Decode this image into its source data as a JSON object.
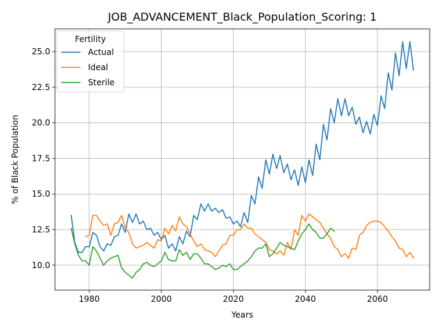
{
  "chart_data": {
    "type": "line",
    "title": "JOB_ADVANCEMENT_Black_Population_Scoring: 1",
    "xlabel": "Years",
    "ylabel": "% of Black Population",
    "xlim": [
      1970.5,
      2074.5
    ],
    "ylim": [
      8.25,
      26.6
    ],
    "xticks": [
      1980,
      2000,
      2020,
      2040,
      2060
    ],
    "yticks": [
      10.0,
      12.5,
      15.0,
      17.5,
      20.0,
      22.5,
      25.0
    ],
    "xtick_labels": [
      "1980",
      "2000",
      "2020",
      "2040",
      "2060"
    ],
    "ytick_labels": [
      "10.0",
      "12.5",
      "15.0",
      "17.5",
      "20.0",
      "22.5",
      "25.0"
    ],
    "grid": true,
    "legend": {
      "title": "Fertility",
      "placement": "top-left"
    },
    "series": [
      {
        "name": "Actual",
        "color": "#1f77b4",
        "x": [
          1975,
          1976,
          1977,
          1978,
          1979,
          1980,
          1981,
          1982,
          1983,
          1984,
          1985,
          1986,
          1987,
          1988,
          1989,
          1990,
          1991,
          1992,
          1993,
          1994,
          1995,
          1996,
          1997,
          1998,
          1999,
          2000,
          2001,
          2002,
          2003,
          2004,
          2005,
          2006,
          2007,
          2008,
          2009,
          2010,
          2011,
          2012,
          2013,
          2014,
          2015,
          2016,
          2017,
          2018,
          2019,
          2020,
          2021,
          2022,
          2023,
          2024,
          2025,
          2026,
          2027,
          2028,
          2029,
          2030,
          2031,
          2032,
          2033,
          2034,
          2035,
          2036,
          2037,
          2038,
          2039,
          2040,
          2041,
          2042,
          2043,
          2044,
          2045,
          2046,
          2047,
          2048,
          2049,
          2050,
          2051,
          2052,
          2053,
          2054,
          2055,
          2056,
          2057,
          2058,
          2059,
          2060,
          2061,
          2062,
          2063,
          2064,
          2065,
          2066,
          2067,
          2068,
          2069,
          2070
        ],
        "y": [
          13.5,
          11.6,
          10.9,
          10.9,
          11.3,
          11.3,
          12.3,
          12.1,
          11.3,
          11.0,
          11.5,
          11.4,
          12.0,
          12.1,
          12.9,
          12.3,
          13.6,
          13.0,
          13.6,
          12.9,
          13.1,
          12.5,
          12.6,
          12.1,
          12.3,
          11.8,
          12.1,
          11.2,
          11.5,
          11.0,
          12.0,
          11.5,
          12.4,
          12.0,
          13.5,
          13.2,
          14.3,
          13.8,
          14.3,
          13.8,
          14.0,
          13.7,
          13.9,
          13.3,
          13.4,
          12.9,
          13.1,
          12.7,
          13.7,
          13.0,
          14.9,
          14.3,
          16.2,
          15.4,
          17.4,
          16.4,
          17.8,
          16.8,
          17.7,
          16.5,
          17.1,
          16.0,
          16.7,
          15.6,
          16.9,
          15.8,
          17.4,
          16.3,
          18.5,
          17.4,
          19.9,
          18.8,
          21.0,
          20.0,
          21.7,
          20.5,
          21.7,
          20.5,
          21.1,
          19.9,
          20.4,
          19.3,
          20.1,
          19.2,
          20.6,
          19.8,
          21.9,
          21.0,
          23.5,
          22.3,
          24.9,
          23.3,
          25.7,
          23.8,
          25.7,
          23.7
        ]
      },
      {
        "name": "Ideal",
        "color": "#ff7f0e",
        "x": [
          1979,
          1980,
          1981,
          1982,
          1983,
          1984,
          1985,
          1986,
          1987,
          1988,
          1989,
          1990,
          1991,
          1992,
          1993,
          1994,
          1995,
          1996,
          1997,
          1998,
          1999,
          2000,
          2001,
          2002,
          2003,
          2004,
          2005,
          2006,
          2007,
          2008,
          2009,
          2010,
          2011,
          2012,
          2013,
          2014,
          2015,
          2016,
          2017,
          2018,
          2019,
          2020,
          2021,
          2022,
          2023,
          2024,
          2025,
          2026,
          2027,
          2028,
          2029,
          2030,
          2031,
          2032,
          2033,
          2034,
          2035,
          2036,
          2037,
          2038,
          2039,
          2040,
          2041,
          2042,
          2043,
          2044,
          2045,
          2046,
          2047,
          2048,
          2049,
          2050,
          2051,
          2052,
          2053,
          2054,
          2055,
          2056,
          2057,
          2058,
          2059,
          2060,
          2061,
          2062,
          2063,
          2064,
          2065,
          2066,
          2067,
          2068,
          2069,
          2070
        ],
        "y": [
          12.0,
          12.1,
          13.5,
          13.5,
          13.1,
          12.8,
          12.9,
          12.1,
          12.9,
          13.0,
          13.5,
          12.6,
          12.3,
          11.5,
          11.2,
          11.3,
          11.4,
          11.6,
          11.4,
          11.2,
          11.8,
          11.7,
          12.6,
          12.2,
          12.8,
          12.4,
          13.4,
          12.9,
          12.7,
          12.2,
          11.7,
          11.3,
          11.5,
          11.1,
          11.0,
          10.9,
          10.6,
          11.0,
          11.4,
          11.5,
          12.1,
          12.1,
          12.5,
          12.5,
          12.9,
          12.6,
          12.6,
          12.2,
          12.0,
          11.8,
          11.6,
          11.1,
          11.0,
          10.8,
          11.0,
          10.7,
          11.6,
          11.1,
          12.5,
          12.1,
          13.5,
          13.1,
          13.6,
          13.4,
          13.2,
          13.0,
          12.6,
          12.2,
          11.9,
          11.3,
          11.1,
          10.6,
          10.8,
          10.5,
          11.2,
          11.1,
          12.1,
          12.3,
          12.8,
          13.0,
          13.1,
          13.1,
          13.0,
          12.7,
          12.4,
          12.0,
          11.7,
          11.2,
          11.1,
          10.6,
          10.9,
          10.5
        ]
      },
      {
        "name": "Sterile",
        "color": "#2ca02c",
        "x": [
          1975,
          1976,
          1977,
          1978,
          1979,
          1980,
          1981,
          1982,
          1983,
          1984,
          1985,
          1986,
          1987,
          1988,
          1989,
          1990,
          1991,
          1992,
          1993,
          1994,
          1995,
          1996,
          1997,
          1998,
          1999,
          2000,
          2001,
          2002,
          2003,
          2004,
          2005,
          2006,
          2007,
          2008,
          2009,
          2010,
          2011,
          2012,
          2013,
          2014,
          2015,
          2016,
          2017,
          2018,
          2019,
          2020,
          2021,
          2022,
          2023,
          2024,
          2025,
          2026,
          2027,
          2028,
          2029,
          2030,
          2031,
          2032,
          2033,
          2034,
          2035,
          2036,
          2037,
          2038,
          2039,
          2040,
          2041,
          2042,
          2043,
          2044,
          2045,
          2046,
          2047,
          2048
        ],
        "y": [
          12.6,
          11.5,
          10.7,
          10.3,
          10.3,
          10.0,
          11.3,
          11.0,
          10.5,
          10.0,
          10.3,
          10.5,
          10.6,
          10.7,
          9.8,
          9.5,
          9.3,
          9.1,
          9.5,
          9.7,
          10.1,
          10.2,
          10.0,
          9.9,
          10.1,
          10.3,
          10.9,
          10.4,
          10.3,
          10.3,
          11.1,
          10.7,
          10.9,
          10.4,
          10.8,
          10.8,
          10.5,
          10.1,
          10.1,
          9.9,
          9.7,
          9.8,
          10.0,
          9.9,
          10.1,
          9.7,
          9.7,
          9.9,
          10.1,
          10.3,
          10.6,
          11.0,
          11.2,
          11.2,
          11.5,
          10.6,
          10.8,
          11.2,
          11.6,
          11.4,
          11.3,
          11.2,
          11.1,
          11.7,
          12.2,
          12.5,
          12.9,
          12.5,
          12.3,
          11.9,
          11.9,
          12.2,
          12.6,
          12.4
        ]
      }
    ]
  }
}
